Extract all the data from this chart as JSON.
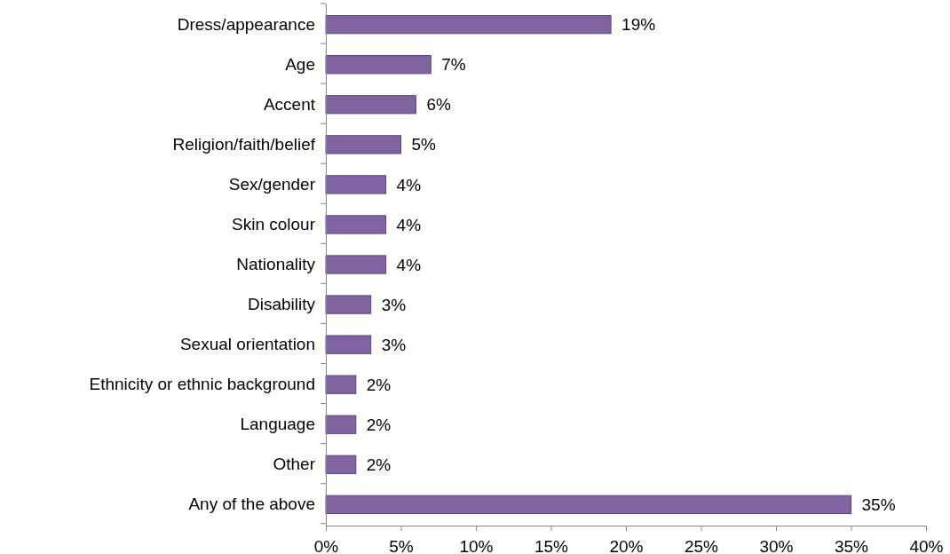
{
  "chart_data": {
    "type": "bar",
    "orientation": "horizontal",
    "categories": [
      "Dress/appearance",
      "Age",
      "Accent",
      "Religion/faith/belief",
      "Sex/gender",
      "Skin colour",
      "Nationality",
      "Disability",
      "Sexual orientation",
      "Ethnicity or ethnic background",
      "Language",
      "Other",
      "Any of the above"
    ],
    "values": [
      19,
      7,
      6,
      5,
      4,
      4,
      4,
      3,
      3,
      2,
      2,
      2,
      35
    ],
    "value_labels": [
      "19%",
      "7%",
      "6%",
      "5%",
      "4%",
      "4%",
      "4%",
      "3%",
      "3%",
      "2%",
      "2%",
      "2%",
      "35%"
    ],
    "color": "#8064a2",
    "xlim": [
      0,
      40
    ],
    "xticks": [
      {
        "value": 0,
        "label": "0%"
      },
      {
        "value": 5,
        "label": "5%"
      },
      {
        "value": 10,
        "label": "10%"
      },
      {
        "value": 15,
        "label": "15%"
      },
      {
        "value": 20,
        "label": "20%"
      },
      {
        "value": 25,
        "label": "25%"
      },
      {
        "value": 30,
        "label": "30%"
      },
      {
        "value": 35,
        "label": "35%"
      },
      {
        "value": 40,
        "label": "40%"
      }
    ],
    "grid": false
  }
}
